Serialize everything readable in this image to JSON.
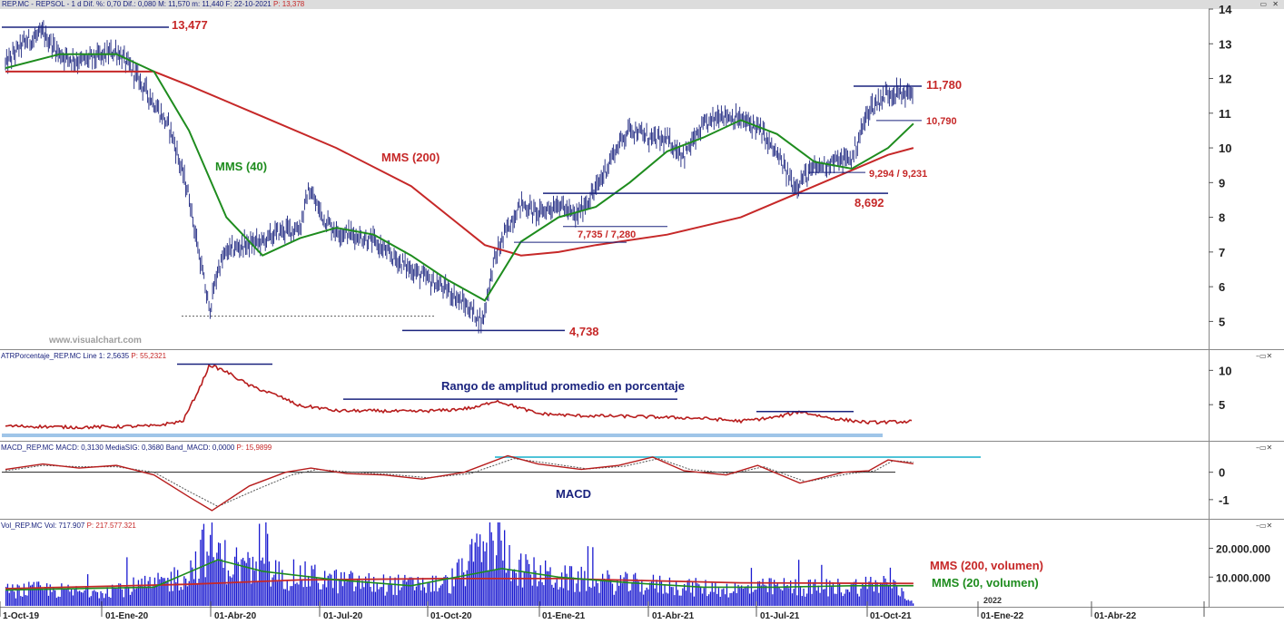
{
  "header": {
    "main_info": "REP.MC - REPSOL - 1 d  Dif. %: 0,70  Dif.: 0,080  M: 11,570  m: 11,440  F: 22-10-2021",
    "main_info_last": "P: 13,378",
    "atr_info": "ATRPorcentaje_REP.MC  Line 1: 2,5635",
    "atr_info_last": "P: 55,2321",
    "macd_info": "MACD_REP.MC  MACD: 0,3130  MediaSIG: 0,3680  Band_MACD: 0,0000",
    "macd_info_last": "P: 15,9899",
    "vol_info": "Vol_REP.MC  Vol: 717.907",
    "vol_info_last": "P: 217.577.321",
    "watermark": "www.visualchart.com"
  },
  "annotations": {
    "high_label": "13,477",
    "low_label": "4,738",
    "top_label": "11,780",
    "support_label": "10,790",
    "sup2_label": "9,294 / 9,231",
    "level_label": "8,692",
    "gap_label": "7,735 / 7,280",
    "mms40_label": "MMS (40)",
    "mms200_label": "MMS (200)",
    "atr_title": "Rango de amplitud promedio en porcentaje",
    "macd_title": "MACD",
    "vol_mms200_label": "MMS (200, volumen)",
    "vol_mms20_label": "MMS (20, volumen)",
    "year_label": "2022"
  },
  "colors": {
    "price": "#1a237e",
    "mms40": "#1e8c1e",
    "mms200": "#c62828",
    "annotation": "#1a237e",
    "atr": "#b71c1c",
    "atr_band": "#9fc5e8",
    "macd_line": "#b71c1c",
    "macd_signal": "#555555",
    "macd_band": "#4fc3d8",
    "volume": "#1a1ad0"
  },
  "chart_data": [
    {
      "type": "line",
      "title": "REP.MC - REPSOL",
      "x_axis_labels": [
        "1-Oct-19",
        "01-Ene-20",
        "01-Abr-20",
        "01-Jul-20",
        "01-Oct-20",
        "01-Ene-21",
        "01-Abr-21",
        "01-Jul-21",
        "01-Oct-21",
        "01-Ene-22",
        "01-Abr-22"
      ],
      "y_ticks": [
        5,
        6,
        7,
        8,
        9,
        10,
        11,
        12,
        13,
        14
      ],
      "ylim": [
        4.2,
        14
      ],
      "series": [
        {
          "name": "Precio",
          "kind": "ohlc-approx",
          "x": [
            "2019-10-01",
            "2019-10-15",
            "2019-11-01",
            "2019-11-15",
            "2019-12-01",
            "2019-12-15",
            "2020-01-01",
            "2020-01-15",
            "2020-02-01",
            "2020-02-15",
            "2020-03-01",
            "2020-03-10",
            "2020-03-18",
            "2020-03-25",
            "2020-04-01",
            "2020-04-15",
            "2020-05-01",
            "2020-05-15",
            "2020-06-01",
            "2020-06-08",
            "2020-06-20",
            "2020-07-01",
            "2020-07-15",
            "2020-08-01",
            "2020-08-15",
            "2020-09-01",
            "2020-09-15",
            "2020-10-01",
            "2020-10-15",
            "2020-10-30",
            "2020-11-09",
            "2020-11-20",
            "2020-12-01",
            "2020-12-15",
            "2021-01-01",
            "2021-01-15",
            "2021-02-01",
            "2021-02-15",
            "2021-03-01",
            "2021-03-15",
            "2021-04-01",
            "2021-04-15",
            "2021-05-01",
            "2021-05-15",
            "2021-06-01",
            "2021-06-15",
            "2021-07-01",
            "2021-07-15",
            "2021-08-01",
            "2021-08-15",
            "2021-09-01",
            "2021-09-15",
            "2021-10-01",
            "2021-10-22"
          ],
          "y": [
            12.4,
            13.0,
            13.3,
            12.7,
            12.5,
            12.6,
            12.8,
            12.2,
            11.3,
            10.5,
            8.6,
            6.8,
            5.3,
            6.5,
            7.0,
            7.2,
            7.3,
            7.6,
            7.7,
            8.8,
            8.0,
            7.6,
            7.5,
            7.3,
            6.9,
            6.5,
            6.2,
            5.9,
            5.5,
            5.0,
            6.8,
            7.7,
            8.4,
            8.1,
            8.4,
            8.0,
            8.8,
            9.8,
            10.6,
            10.3,
            10.2,
            9.8,
            10.6,
            11.0,
            10.8,
            10.6,
            9.8,
            8.9,
            9.4,
            9.6,
            9.7,
            11.1,
            11.6,
            11.57
          ]
        },
        {
          "name": "MMS (40)",
          "x": [
            "2019-10-01",
            "2019-11-15",
            "2020-01-01",
            "2020-02-01",
            "2020-03-01",
            "2020-04-01",
            "2020-05-01",
            "2020-06-01",
            "2020-07-01",
            "2020-08-01",
            "2020-09-01",
            "2020-10-01",
            "2020-11-01",
            "2020-12-01",
            "2021-01-01",
            "2021-02-01",
            "2021-03-01",
            "2021-04-01",
            "2021-05-01",
            "2021-06-01",
            "2021-07-01",
            "2021-08-01",
            "2021-09-01",
            "2021-10-01",
            "2021-10-22"
          ],
          "y": [
            12.3,
            12.7,
            12.7,
            12.2,
            10.5,
            8.0,
            6.9,
            7.4,
            7.7,
            7.5,
            6.9,
            6.2,
            5.6,
            7.3,
            8.0,
            8.3,
            9.0,
            9.9,
            10.3,
            10.8,
            10.4,
            9.6,
            9.4,
            10.0,
            10.7
          ]
        },
        {
          "name": "MMS (200)",
          "x": [
            "2019-10-01",
            "2020-01-01",
            "2020-02-01",
            "2020-03-01",
            "2020-05-01",
            "2020-07-01",
            "2020-09-01",
            "2020-11-01",
            "2020-12-01",
            "2021-01-01",
            "2021-02-01",
            "2021-04-01",
            "2021-06-01",
            "2021-08-01",
            "2021-10-01",
            "2021-10-22"
          ],
          "y": [
            12.2,
            12.2,
            12.2,
            11.8,
            10.9,
            10.0,
            8.9,
            7.2,
            6.9,
            7.0,
            7.2,
            7.5,
            8.0,
            8.9,
            9.8,
            10.0
          ]
        }
      ],
      "levels": [
        13.477,
        11.78,
        10.79,
        9.294,
        8.692,
        7.735,
        7.28,
        4.738
      ]
    },
    {
      "type": "line",
      "title": "ATRPorcentaje_REP.MC",
      "y_ticks": [
        5,
        10
      ],
      "ylim": [
        0,
        11.5
      ],
      "series": [
        {
          "name": "Line 1",
          "x": [
            "2019-10-01",
            "2019-12-01",
            "2020-02-01",
            "2020-02-25",
            "2020-03-10",
            "2020-03-18",
            "2020-04-01",
            "2020-04-20",
            "2020-05-15",
            "2020-06-01",
            "2020-06-15",
            "2020-07-01",
            "2020-08-01",
            "2020-09-01",
            "2020-10-01",
            "2020-10-25",
            "2020-11-10",
            "2020-11-25",
            "2020-12-15",
            "2021-01-15",
            "2021-03-01",
            "2021-05-01",
            "2021-06-01",
            "2021-07-01",
            "2021-07-20",
            "2021-08-15",
            "2021-09-15",
            "2021-10-22"
          ],
          "y": [
            1.9,
            1.7,
            1.9,
            2.6,
            7.5,
            10.8,
            9.8,
            7.8,
            6.2,
            4.8,
            4.6,
            4.1,
            4.1,
            4.0,
            4.2,
            4.6,
            5.6,
            4.8,
            3.7,
            3.4,
            3.3,
            3.0,
            2.6,
            3.2,
            4.0,
            3.0,
            2.4,
            2.56
          ]
        }
      ],
      "levels": [
        10.9,
        5.8,
        4.0
      ]
    },
    {
      "type": "line",
      "title": "MACD_REP.MC",
      "y_ticks": [
        0,
        -1
      ],
      "ylim": [
        -1.7,
        0.75
      ],
      "series": [
        {
          "name": "MACD",
          "x": [
            "2019-10-01",
            "2019-11-01",
            "2019-12-01",
            "2020-01-01",
            "2020-02-01",
            "2020-03-01",
            "2020-03-20",
            "2020-04-20",
            "2020-05-20",
            "2020-06-10",
            "2020-07-10",
            "2020-08-10",
            "2020-09-10",
            "2020-10-15",
            "2020-11-20",
            "2020-12-15",
            "2021-01-20",
            "2021-02-20",
            "2021-03-20",
            "2021-04-15",
            "2021-05-20",
            "2021-06-15",
            "2021-07-20",
            "2021-08-25",
            "2021-09-15",
            "2021-10-01",
            "2021-10-22"
          ],
          "y": [
            0.1,
            0.3,
            0.15,
            0.25,
            -0.1,
            -0.9,
            -1.4,
            -0.5,
            0.0,
            0.15,
            -0.05,
            -0.1,
            -0.25,
            0.0,
            0.6,
            0.3,
            0.1,
            0.25,
            0.55,
            0.05,
            -0.1,
            0.25,
            -0.4,
            0.0,
            0.05,
            0.45,
            0.31
          ]
        },
        {
          "name": "MediaSIG",
          "x": [
            "2019-10-01",
            "2019-11-01",
            "2019-12-01",
            "2020-01-01",
            "2020-02-01",
            "2020-03-01",
            "2020-03-25",
            "2020-04-25",
            "2020-05-25",
            "2020-06-15",
            "2020-07-15",
            "2020-08-15",
            "2020-09-15",
            "2020-10-20",
            "2020-11-25",
            "2020-12-20",
            "2021-01-25",
            "2021-02-25",
            "2021-03-25",
            "2021-04-20",
            "2021-05-25",
            "2021-06-20",
            "2021-07-25",
            "2021-08-30",
            "2021-09-20",
            "2021-10-05",
            "2021-10-22"
          ],
          "y": [
            0.05,
            0.25,
            0.2,
            0.2,
            0.0,
            -0.7,
            -1.25,
            -0.65,
            -0.1,
            0.1,
            0.0,
            -0.08,
            -0.2,
            -0.05,
            0.5,
            0.35,
            0.12,
            0.22,
            0.5,
            0.1,
            -0.05,
            0.2,
            -0.35,
            -0.05,
            0.05,
            0.42,
            0.37
          ]
        }
      ],
      "levels": [
        0.55
      ]
    },
    {
      "type": "bar",
      "title": "Vol_REP.MC",
      "y_ticks": [
        10000000,
        20000000
      ],
      "y_tick_labels": [
        "10.000.000",
        "20.000.000"
      ],
      "ylim": [
        0,
        29000000
      ],
      "series": [
        {
          "name": "Vol",
          "x": [
            "2019-10-01",
            "2019-11-01",
            "2019-12-01",
            "2020-01-01",
            "2020-02-01",
            "2020-03-01",
            "2020-03-15",
            "2020-04-01",
            "2020-05-01",
            "2020-06-01",
            "2020-07-01",
            "2020-08-01",
            "2020-09-01",
            "2020-10-01",
            "2020-11-09",
            "2020-12-01",
            "2021-01-01",
            "2021-02-01",
            "2021-03-01",
            "2021-04-01",
            "2021-05-01",
            "2021-06-01",
            "2021-07-01",
            "2021-08-01",
            "2021-09-01",
            "2021-10-01",
            "2021-10-22"
          ],
          "y": [
            5500000,
            6000000,
            5000000,
            6500000,
            7500000,
            12000000,
            22000000,
            16000000,
            12000000,
            11000000,
            9000000,
            8000000,
            7500000,
            8000000,
            24000000,
            13000000,
            10000000,
            9000000,
            8000000,
            7500000,
            6500000,
            6000000,
            7000000,
            6500000,
            7000000,
            8500000,
            717907
          ]
        },
        {
          "name": "MMS (200, volumen)",
          "x": [
            "2019-10-01",
            "2020-03-01",
            "2020-06-01",
            "2020-10-01",
            "2021-01-01",
            "2021-06-01",
            "2021-10-22"
          ],
          "y": [
            6000000,
            7500000,
            9000000,
            9500000,
            9500000,
            8000000,
            7800000
          ]
        },
        {
          "name": "MMS (20, volumen)",
          "x": [
            "2019-10-01",
            "2020-02-01",
            "2020-03-25",
            "2020-05-01",
            "2020-07-01",
            "2020-09-01",
            "2020-11-15",
            "2021-01-01",
            "2021-03-01",
            "2021-05-01",
            "2021-07-01",
            "2021-09-01",
            "2021-10-22"
          ],
          "y": [
            5500000,
            6500000,
            16000000,
            12000000,
            9000000,
            7000000,
            13000000,
            10000000,
            8000000,
            6500000,
            6500000,
            7000000,
            7000000
          ]
        }
      ]
    }
  ]
}
